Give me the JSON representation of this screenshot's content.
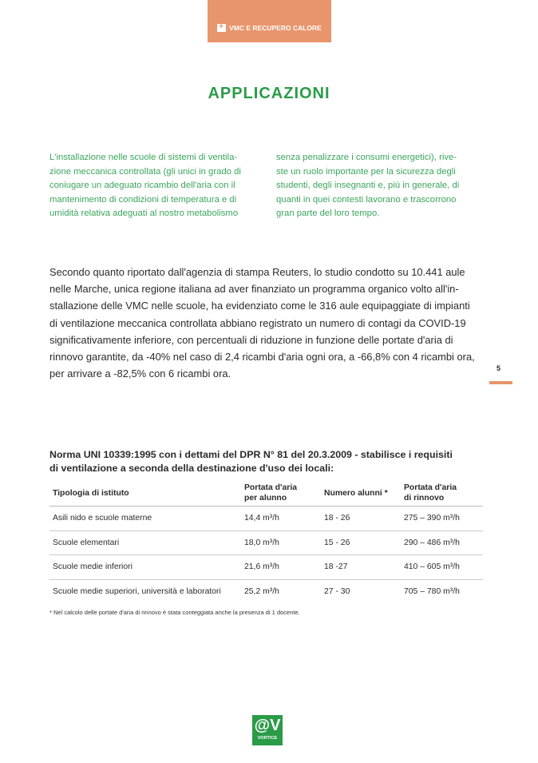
{
  "header": {
    "section": "VMC E RECUPERO CALORE",
    "icon": "house-plus-icon"
  },
  "title": "APPLICAZIONI",
  "intro": {
    "col1": [
      "L'installazione nelle scuole di sistemi di ventila-",
      "zione meccanica controllata (gli unici in grado di",
      "coniugare un adeguato ricambio dell'aria con il",
      "mantenimento di condizioni di temperatura e di",
      "umidità relativa adeguati al nostro metabolismo"
    ],
    "col2": [
      "senza penalizzare i consumi energetici), rive-",
      "ste un ruolo importante per la sicurezza degli",
      "studenti, degli insegnanti e, più in generale, di",
      "quanti in quei contesti lavorano e trascorrono",
      "gran parte del loro tempo."
    ]
  },
  "body": [
    "Secondo quanto riportato dall'agenzia di stampa Reuters, lo studio condotto su 10.441 aule",
    "nelle Marche, unica regione italiana ad aver finanziato un programma organico volto all'in-",
    "stallazione delle VMC nelle scuole, ha evidenziato come le 316 aule equipaggiate di impianti",
    "di ventilazione meccanica controllata abbiano registrato un numero di contagi da COVID-19",
    "significativamente inferiore, con percentuali di riduzione in funzione delle portate d'aria di",
    "rinnovo garantite, da -40% nel caso di 2,4 ricambi d'aria ogni ora, a -66,8% con 4 ricambi ora,",
    "per arrivare a -82,5% con 6 ricambi ora."
  ],
  "page_number": "5",
  "table_heading": [
    "Norma UNI 10339:1995 con i dettami del DPR N° 81 del 20.3.2009 - stabilisce i requisiti",
    "di ventilazione a seconda della destinazione d'uso dei locali:"
  ],
  "table": {
    "headers": [
      "Tipologia di istituto",
      "Portata d'aria\nper alunno",
      "Numero alunni *",
      "Portata d'aria\ndi rinnovo"
    ],
    "rows": [
      [
        "Asili nido e scuole materne",
        "14,4 m³/h",
        "18 - 26",
        "275 – 390 m³/h"
      ],
      [
        "Scuole elementari",
        "18,0 m³/h",
        "15 - 26",
        "290 – 486 m³/h"
      ],
      [
        "Scuole medie inferiori",
        "21,6 m³/h",
        "18 -27",
        "410 – 605 m³/h"
      ],
      [
        "Scuole medie superiori, università e laboratori",
        "25,2 m³/h",
        "27 - 30",
        "705 – 780 m³/h"
      ]
    ]
  },
  "footnote": "* Nel calcolo delle portate d'aria di rinnovo è stata conteggiata anche la presenza di 1 docente.",
  "logo": {
    "mark": "@V",
    "text": "VORTICE"
  },
  "colors": {
    "accent": "#E8956B",
    "green": "#2A9B47"
  }
}
